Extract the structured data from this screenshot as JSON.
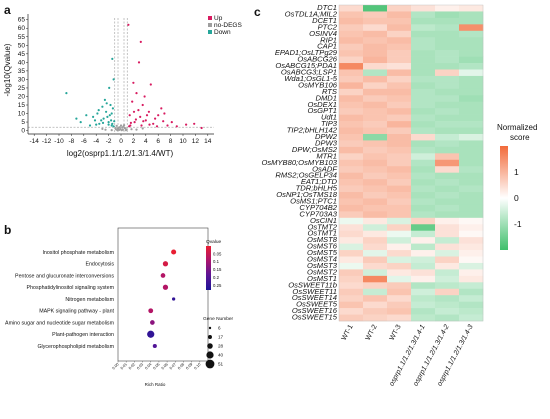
{
  "panel_labels": {
    "a": "a",
    "b": "b",
    "c": "c"
  },
  "chart_data": [
    {
      "id": "a",
      "type": "scatter",
      "title": "",
      "xlabel": "log2(osprp1.1/1.2/1.3/1.4/WT)",
      "ylabel": "-log10(Qvalue)",
      "xlim": [
        -15,
        15
      ],
      "ylim": [
        -2,
        66
      ],
      "xticks": [
        -14,
        -12,
        -10,
        -8,
        -6,
        -4,
        -2,
        0,
        2,
        4,
        6,
        8,
        10,
        12,
        14
      ],
      "yticks": [
        0,
        5,
        10,
        15,
        20,
        25,
        30,
        35,
        40,
        45,
        50,
        55,
        60,
        65
      ],
      "threshold_x": [
        -1,
        1
      ],
      "threshold_y": 2,
      "legend": {
        "placement": "top-right",
        "entries": [
          "Up",
          "no-DEGS",
          "Down"
        ]
      },
      "colors": {
        "Up": "#d81b60",
        "no-DEGS": "#9e9e9e",
        "Down": "#26a69a"
      },
      "series": [
        {
          "name": "Up",
          "points": [
            [
              1.5,
              3
            ],
            [
              2.2,
              5
            ],
            [
              3.1,
              8
            ],
            [
              2.8,
              12
            ],
            [
              4.0,
              6
            ],
            [
              5.2,
              4
            ],
            [
              6.0,
              9
            ],
            [
              7.5,
              3
            ],
            [
              1.8,
              17
            ],
            [
              3.5,
              15
            ],
            [
              2.5,
              22
            ],
            [
              4.5,
              11
            ],
            [
              8.2,
              5
            ],
            [
              9.0,
              2.5
            ],
            [
              10.5,
              3.5
            ],
            [
              6.5,
              13
            ],
            [
              2.0,
              28
            ],
            [
              3.8,
              20
            ],
            [
              5.5,
              7
            ],
            [
              7.0,
              10
            ],
            [
              1.3,
              2.5
            ],
            [
              1.6,
              4.5
            ],
            [
              2.4,
              6.5
            ],
            [
              3.3,
              3
            ],
            [
              4.2,
              9
            ],
            [
              5.8,
              2.5
            ],
            [
              11.8,
              4
            ],
            [
              13,
              1.5
            ],
            [
              2.9,
              40
            ],
            [
              3.2,
              52
            ],
            [
              4.8,
              27
            ],
            [
              1.4,
              9
            ],
            [
              2.1,
              11
            ],
            [
              3.6,
              5.5
            ],
            [
              4.6,
              3.5
            ],
            [
              6.8,
              5.5
            ],
            [
              1.2,
              62
            ]
          ]
        },
        {
          "name": "no-DEGS",
          "points": [
            [
              -0.5,
              1
            ],
            [
              0.3,
              0.5
            ],
            [
              -0.2,
              2
            ],
            [
              0.6,
              1.5
            ],
            [
              0.1,
              0.2
            ],
            [
              -0.8,
              0.8
            ],
            [
              0.9,
              0.6
            ],
            [
              -0.4,
              1.7
            ],
            [
              0.4,
              2.5
            ],
            [
              -0.6,
              0.3
            ],
            [
              0.7,
              1.2
            ],
            [
              -0.1,
              0.9
            ],
            [
              0.2,
              1.8
            ],
            [
              -0.9,
              1.4
            ],
            [
              0.8,
              0.2
            ],
            [
              -0.3,
              0.4
            ],
            [
              -2.5,
              0.5
            ],
            [
              2.5,
              0.6
            ],
            [
              -3.0,
              1
            ],
            [
              3.5,
              1.2
            ],
            [
              -1.5,
              0.3
            ],
            [
              1.7,
              0.8
            ],
            [
              0.0,
              3
            ],
            [
              -0.7,
              2.8
            ],
            [
              0.5,
              3.2
            ]
          ]
        },
        {
          "name": "Down",
          "points": [
            [
              -1.5,
              3
            ],
            [
              -2.0,
              5
            ],
            [
              -2.8,
              7
            ],
            [
              -1.8,
              9
            ],
            [
              -3.5,
              4
            ],
            [
              -4.2,
              6
            ],
            [
              -2.4,
              11
            ],
            [
              -1.3,
              13
            ],
            [
              -5.0,
              3
            ],
            [
              -3.0,
              14
            ],
            [
              -1.6,
              6
            ],
            [
              -2.2,
              8
            ],
            [
              -3.8,
              10
            ],
            [
              -1.4,
              4
            ],
            [
              -6.5,
              5
            ],
            [
              -2.6,
              18
            ],
            [
              -1.7,
              15
            ],
            [
              -4.5,
              8
            ],
            [
              -3.2,
              6
            ],
            [
              -2.0,
              3.5
            ],
            [
              -1.2,
              2.5
            ],
            [
              -8.8,
              22
            ],
            [
              -1.9,
              25
            ],
            [
              -5.6,
              9
            ],
            [
              -2.9,
              4.5
            ],
            [
              -3.6,
              12
            ],
            [
              -1.5,
              10
            ],
            [
              -2.3,
              16
            ],
            [
              -4.0,
              3.5
            ],
            [
              -1.1,
              5.5
            ],
            [
              -1.2,
              30
            ],
            [
              -1.4,
              42
            ],
            [
              -7.2,
              7
            ]
          ]
        }
      ]
    },
    {
      "id": "b",
      "type": "scatter",
      "title": "",
      "xlabel": "Rich Ratio",
      "ylabel": "",
      "xlim": [
        0.0,
        0.11
      ],
      "xticks": [
        "0.00",
        "0.01",
        "0.02",
        "0.03",
        "0.04",
        "0.05",
        "0.06",
        "0.07",
        "0.08",
        "0.09",
        "0.10"
      ],
      "categories": [
        "Inositol phosphate metabolism",
        "Endocytosis",
        "Pentose and glucuronate interconversions",
        "Phosphatidylinositol signaling system",
        "Nitrogen metabolism",
        "MAPK signaling pathway - plant",
        "Amino sugar and nucleotide sugar metabolism",
        "Plant-pathogen interaction",
        "Glycerophospholipid metabolism"
      ],
      "rich_ratio": [
        0.068,
        0.058,
        0.055,
        0.058,
        0.068,
        0.04,
        0.042,
        0.04,
        0.045
      ],
      "qvalue": [
        0.0,
        0.03,
        0.08,
        0.08,
        0.25,
        0.08,
        0.13,
        0.25,
        0.2
      ],
      "gene_number": [
        25,
        26,
        22,
        26,
        12,
        23,
        22,
        40,
        18
      ],
      "color_legend": {
        "title": "Qvalue",
        "ticks": [
          "0.05",
          "0.1",
          "0.15",
          "0.2",
          "0.25"
        ],
        "range": [
          0.0,
          0.28
        ]
      },
      "size_legend": {
        "title": "Gene Number",
        "ticks": [
          "6",
          "17",
          "28",
          "40",
          "51"
        ]
      }
    },
    {
      "id": "c",
      "type": "heatmap",
      "title": "",
      "columns": [
        "WT-1",
        "WT-2",
        "WT-3",
        "osprp1.1/1.2/1.3/1.4-1",
        "osprp1.1/1.2/1.3/1.4-2",
        "osprp1.1/1.2/1.3/1.4-3"
      ],
      "rows": [
        "DTC1",
        "OsTDL1A;MIL2",
        "DCET1",
        "PTC2",
        "OSINV4",
        "RIP1",
        "CAP1",
        "EPAD1;OsLTPg29",
        "OsABCG26",
        "OsABCG15;PDA1",
        "OsABCG3;LSP1",
        "Wda1;OsGL1-5",
        "OsMYB106",
        "RTS",
        "DMD1",
        "OsDEX1",
        "OsGPT1",
        "Udt1",
        "TIP3",
        "TIP2;bHLH142",
        "DPW2",
        "DPW3",
        "DPW;OsMS2",
        "MTR1",
        "OsMYB80;OsMYB103",
        "OsADF",
        "RMS2;OsGELP34",
        "EAT1;DTD",
        "TDR;bHLH5",
        "OsNP1;OsTMS18",
        "OsMS1;PTC1",
        "CYP704B2",
        "CYP703A3",
        "OsCIN1",
        "OsTMT2",
        "OsTMT1",
        "OsMST8",
        "OsMST6",
        "OsMST5",
        "OsMST4",
        "OsMST3",
        "OsMST2",
        "OsMST1",
        "OsSWEET11b",
        "OsSWEET11",
        "OsSWEET14",
        "OsSWEET5",
        "OsSWEET16",
        "OsSWEET15"
      ],
      "values": [
        [
          0.5,
          -1.8,
          0.6,
          0.4,
          0.2,
          0.3
        ],
        [
          0.8,
          0.7,
          0.9,
          -0.8,
          -1.0,
          -0.9
        ],
        [
          0.9,
          0.8,
          0.8,
          -0.9,
          -0.9,
          -0.9
        ],
        [
          0.7,
          0.5,
          0.9,
          -0.7,
          -0.8,
          1.5
        ],
        [
          0.8,
          0.9,
          0.6,
          -0.9,
          -0.9,
          -0.8
        ],
        [
          0.9,
          0.8,
          0.9,
          -0.8,
          -0.9,
          -0.9
        ],
        [
          0.7,
          0.9,
          0.8,
          -0.8,
          -0.9,
          -0.9
        ],
        [
          0.8,
          0.9,
          0.7,
          -0.9,
          -0.8,
          -0.9
        ],
        [
          0.6,
          1.0,
          0.7,
          -0.9,
          -0.8,
          -1.0
        ],
        [
          1.6,
          0.5,
          0.4,
          -0.9,
          -0.9,
          -0.8
        ],
        [
          0.8,
          -0.8,
          0.9,
          -0.9,
          0.6,
          -0.3
        ],
        [
          0.7,
          0.9,
          0.6,
          -0.8,
          -0.8,
          -0.9
        ],
        [
          1.0,
          0.6,
          0.8,
          -0.9,
          -0.8,
          -0.9
        ],
        [
          0.6,
          0.9,
          0.9,
          -0.8,
          -0.9,
          -0.9
        ],
        [
          0.9,
          0.7,
          0.8,
          -0.8,
          -0.8,
          -1.0
        ],
        [
          0.8,
          0.9,
          0.7,
          -0.8,
          -0.9,
          -0.9
        ],
        [
          0.7,
          0.8,
          0.9,
          -0.9,
          -0.8,
          -0.9
        ],
        [
          0.9,
          0.8,
          0.7,
          -0.8,
          -0.9,
          -0.9
        ],
        [
          0.8,
          0.7,
          1.0,
          -0.9,
          -0.8,
          -0.8
        ],
        [
          0.9,
          0.8,
          0.7,
          -0.8,
          -0.9,
          -0.9
        ],
        [
          0.8,
          -1.2,
          0.9,
          0.5,
          -0.6,
          -0.4
        ],
        [
          0.7,
          0.8,
          0.9,
          -0.9,
          -0.8,
          -0.9
        ],
        [
          0.9,
          0.7,
          0.8,
          -0.8,
          -0.9,
          -0.9
        ],
        [
          0.6,
          0.8,
          0.7,
          -0.5,
          0.8,
          -0.9
        ],
        [
          0.8,
          0.9,
          0.7,
          -0.8,
          1.4,
          -0.9
        ],
        [
          0.7,
          0.8,
          0.9,
          -0.9,
          0.5,
          -0.8
        ],
        [
          0.9,
          0.7,
          0.8,
          -0.8,
          -0.9,
          -0.9
        ],
        [
          0.8,
          0.9,
          0.7,
          -0.9,
          -0.8,
          -0.9
        ],
        [
          0.7,
          0.8,
          0.9,
          -0.8,
          -0.9,
          -0.8
        ],
        [
          0.9,
          0.7,
          0.8,
          -0.9,
          -0.8,
          -0.9
        ],
        [
          0.8,
          0.9,
          0.7,
          -0.8,
          -0.9,
          -0.9
        ],
        [
          0.9,
          0.8,
          0.8,
          -0.9,
          -0.8,
          -0.9
        ],
        [
          0.7,
          0.9,
          0.8,
          -0.8,
          -0.9,
          -0.9
        ],
        [
          -0.2,
          0.3,
          -0.4,
          0.6,
          0.2,
          0.1
        ],
        [
          0.4,
          -0.5,
          0.6,
          -1.6,
          0.4,
          0.2
        ],
        [
          0.5,
          0.3,
          -0.2,
          -0.6,
          0.4,
          0.1
        ],
        [
          0.3,
          0.6,
          -0.5,
          0.2,
          -0.6,
          0.4
        ],
        [
          -0.4,
          0.5,
          0.2,
          -0.7,
          0.4,
          0.3
        ],
        [
          0.6,
          -0.3,
          0.5,
          0.2,
          -0.4,
          0.2
        ],
        [
          0.3,
          0.7,
          -0.4,
          -0.5,
          0.6,
          0.1
        ],
        [
          -0.2,
          0.5,
          0.6,
          -0.6,
          0.3,
          -0.4
        ],
        [
          0.7,
          -0.5,
          0.3,
          0.4,
          -0.6,
          0.2
        ],
        [
          0.6,
          1.6,
          -0.3,
          0.2,
          -0.5,
          0.3
        ],
        [
          0.5,
          0.6,
          0.7,
          -0.8,
          -0.7,
          -0.6
        ],
        [
          0.7,
          -0.6,
          0.8,
          -0.5,
          0.6,
          -0.8
        ],
        [
          0.6,
          0.8,
          0.5,
          -0.7,
          -0.8,
          -0.6
        ],
        [
          0.8,
          0.5,
          0.7,
          -0.6,
          -0.7,
          -0.8
        ],
        [
          0.5,
          0.7,
          0.8,
          -0.8,
          -0.6,
          -0.7
        ],
        [
          0.7,
          0.6,
          0.5,
          -0.7,
          -0.8,
          -0.6
        ]
      ],
      "color_scale": {
        "low": "#3fbf6b",
        "mid": "#ffffff",
        "high": "#f26b3a",
        "range": [
          -2,
          2
        ]
      },
      "legend": {
        "title_line1": "Normalized",
        "title_line2": "score",
        "ticks": [
          "1",
          "0",
          "-1"
        ],
        "tick_values": [
          1,
          0,
          -1
        ]
      }
    }
  ]
}
